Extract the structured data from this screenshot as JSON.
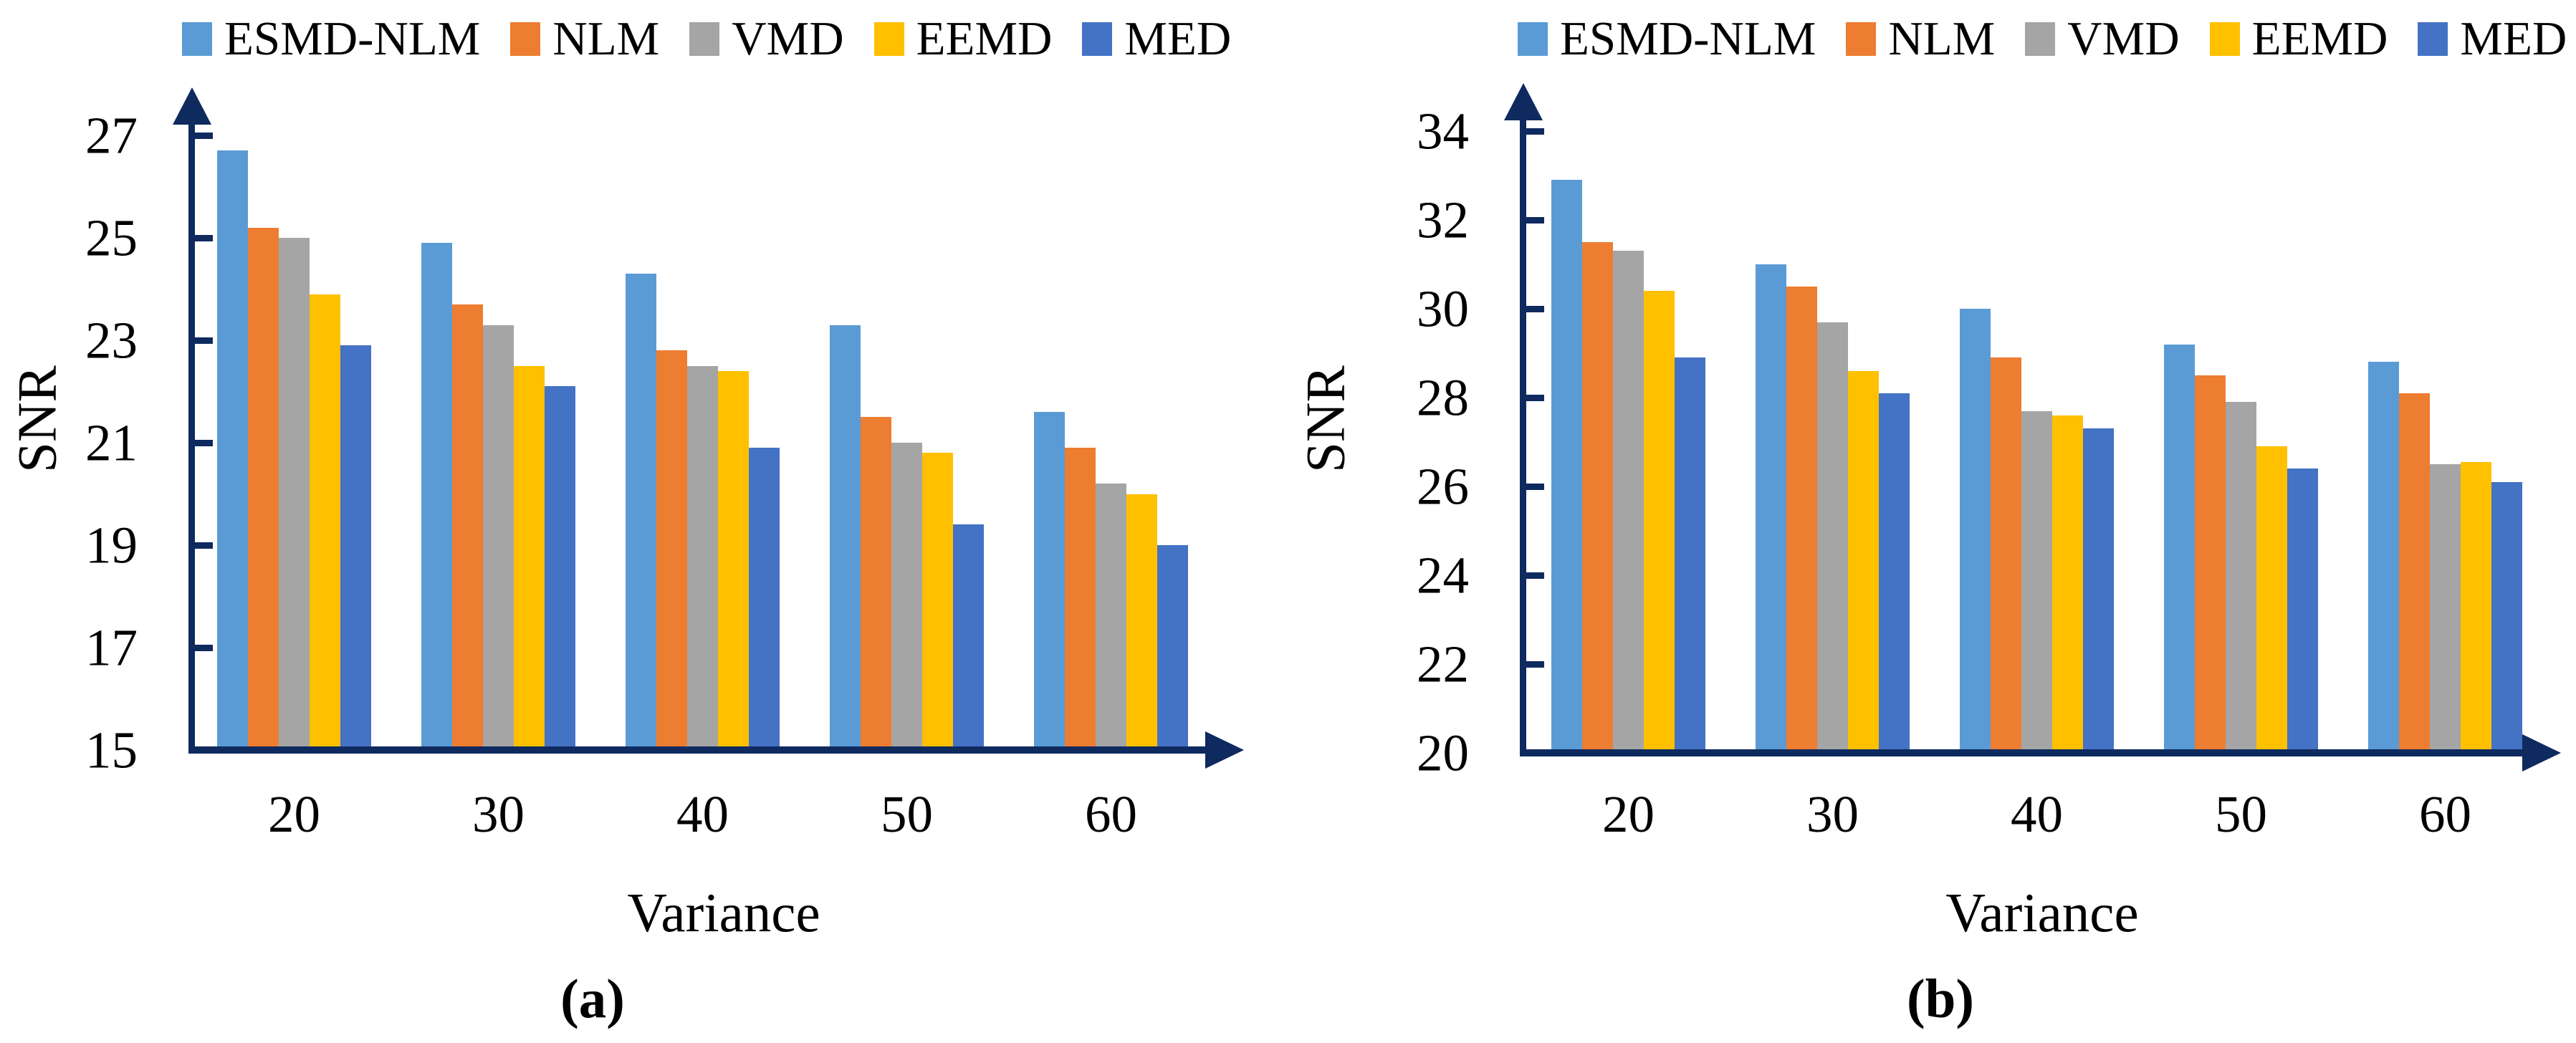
{
  "figure": {
    "description": "Two-panel grouped bar chart comparing denoising methods",
    "legend_items": [
      "ESMD-NLM",
      "NLM",
      "VMD",
      "EEMD",
      "MED"
    ],
    "axis_color": "#0e2a5f",
    "series_colors": [
      "#5B9BD5",
      "#ED7D31",
      "#A5A5A5",
      "#FFC000",
      "#4472C4"
    ]
  },
  "chart_data": [
    {
      "type": "bar",
      "panel_label": "(a)",
      "xlabel": "Variance",
      "ylabel": "SNR",
      "categories": [
        "20",
        "30",
        "40",
        "50",
        "60"
      ],
      "ylim": [
        15,
        27
      ],
      "yticks": [
        27,
        25,
        23,
        21,
        19,
        17,
        15
      ],
      "grid": false,
      "legend_position": "top",
      "series": [
        {
          "name": "ESMD-NLM",
          "color": "#5B9BD5",
          "values": [
            26.7,
            24.9,
            24.3,
            23.3,
            21.6
          ]
        },
        {
          "name": "NLM",
          "color": "#ED7D31",
          "values": [
            25.2,
            23.7,
            22.8,
            21.5,
            20.9
          ]
        },
        {
          "name": "VMD",
          "color": "#A5A5A5",
          "values": [
            25.0,
            23.3,
            22.5,
            21.0,
            20.2
          ]
        },
        {
          "name": "EEMD",
          "color": "#FFC000",
          "values": [
            23.9,
            22.5,
            22.4,
            20.8,
            20.0
          ]
        },
        {
          "name": "MED",
          "color": "#4472C4",
          "values": [
            22.9,
            22.1,
            20.9,
            19.4,
            19.0
          ]
        }
      ]
    },
    {
      "type": "bar",
      "panel_label": "(b)",
      "xlabel": "Variance",
      "ylabel": "SNR",
      "categories": [
        "20",
        "30",
        "40",
        "50",
        "60"
      ],
      "ylim": [
        20,
        34
      ],
      "yticks": [
        34,
        32,
        30,
        28,
        26,
        24,
        22,
        20
      ],
      "grid": false,
      "legend_position": "top",
      "series": [
        {
          "name": "ESMD-NLM",
          "color": "#5B9BD5",
          "values": [
            32.9,
            31.0,
            30.0,
            29.2,
            28.8
          ]
        },
        {
          "name": "NLM",
          "color": "#ED7D31",
          "values": [
            31.5,
            30.5,
            28.9,
            28.5,
            28.1
          ]
        },
        {
          "name": "VMD",
          "color": "#A5A5A5",
          "values": [
            31.3,
            29.7,
            27.7,
            27.9,
            26.5
          ]
        },
        {
          "name": "EEMD",
          "color": "#FFC000",
          "values": [
            30.4,
            28.6,
            27.6,
            26.9,
            26.55
          ]
        },
        {
          "name": "MED",
          "color": "#4472C4",
          "values": [
            28.9,
            28.1,
            27.3,
            26.4,
            26.1
          ]
        }
      ]
    }
  ]
}
